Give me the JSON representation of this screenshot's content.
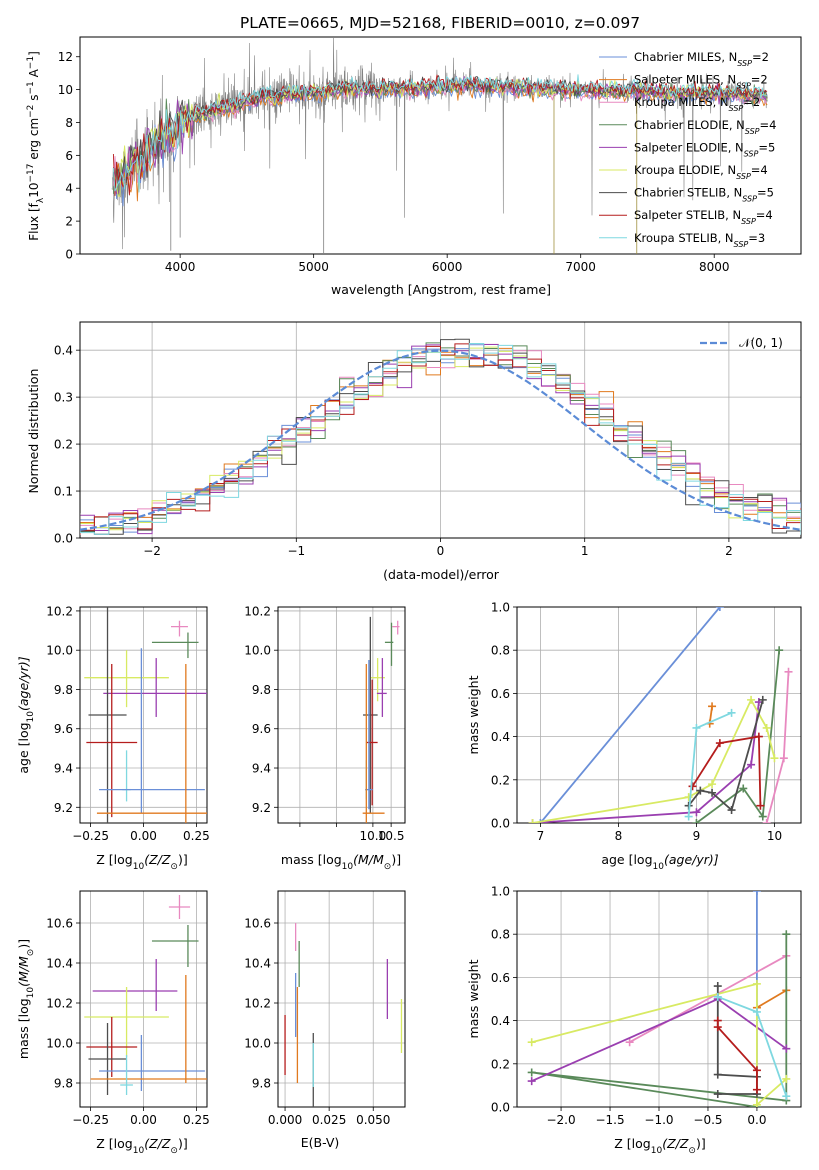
{
  "colors": {
    "Chabrier MILES": "#6a8fd8",
    "Salpeter MILES": "#e07a1f",
    "Kroupa MILES": "#e889c0",
    "Chabrier ELODIE": "#5a8a5a",
    "Salpeter ELODIE": "#9a3fb0",
    "Kroupa ELODIE": "#d8ea63",
    "Chabrier STELIB": "#4d4d4d",
    "Salpeter STELIB": "#b51d1d",
    "Kroupa STELIB": "#7fd8e0",
    "data": "#808080",
    "gaussian": "#5b8bd6"
  },
  "chart_data": [
    {
      "type": "line",
      "title": "PLATE=0665, MJD=52168, FIBERID=0010, z=0.097",
      "xlabel": "wavelength [Angstrom, rest frame]",
      "ylabel": "Flux [f",
      "ylabel_parts": [
        "Flux [f",
        "λ",
        "10",
        "−17",
        " erg cm",
        "−2",
        " s",
        "−1",
        " A",
        "−1",
        "]"
      ],
      "xlim": [
        3250,
        8650
      ],
      "ylim": [
        0,
        13.2
      ],
      "xticks": [
        4000,
        5000,
        6000,
        7000,
        8000
      ],
      "yticks": [
        0,
        2,
        4,
        6,
        8,
        10,
        12
      ],
      "legend_position": "right",
      "legend": [
        {
          "name": "Chabrier MILES",
          "nssp": "2"
        },
        {
          "name": "Salpeter MILES",
          "nssp": "2"
        },
        {
          "name": "Kroupa MILES",
          "nssp": "2"
        },
        {
          "name": "Chabrier ELODIE",
          "nssp": "4"
        },
        {
          "name": "Salpeter ELODIE",
          "nssp": "5"
        },
        {
          "name": "Kroupa ELODIE",
          "nssp": "4"
        },
        {
          "name": "Chabrier STELIB",
          "nssp": "5"
        },
        {
          "name": "Salpeter STELIB",
          "nssp": "4"
        },
        {
          "name": "Kroupa STELIB",
          "nssp": "3"
        }
      ],
      "nssp_label": "N",
      "nssp_sub": "SSP",
      "continuum": {
        "x": [
          3500,
          3550,
          3600,
          3650,
          3700,
          3750,
          3800,
          3850,
          3900,
          3950,
          4000,
          4100,
          4200,
          4300,
          4400,
          4500,
          4600,
          4800,
          5000,
          5200,
          5400,
          5600,
          5800,
          6000,
          6200,
          6400,
          6600,
          6800,
          7000,
          7200,
          7400,
          7600,
          7800,
          8000,
          8200,
          8400
        ],
        "y": [
          4.3,
          4.6,
          5.0,
          5.5,
          5.6,
          6.0,
          6.5,
          7.0,
          7.2,
          7.3,
          8.0,
          8.3,
          8.6,
          8.8,
          9.0,
          9.3,
          9.5,
          9.7,
          9.8,
          10.0,
          10.0,
          10.1,
          10.1,
          10.2,
          10.2,
          10.2,
          10.1,
          10.0,
          10.0,
          9.9,
          9.9,
          9.8,
          9.8,
          9.8,
          9.7,
          9.6
        ]
      }
    },
    {
      "type": "bar",
      "xlabel": "(data-model)/error",
      "ylabel": "Normed distribution",
      "xlim": [
        -2.5,
        2.5
      ],
      "ylim": [
        0,
        0.46
      ],
      "xticks": [
        -2,
        -1,
        0,
        1,
        2
      ],
      "yticks": [
        0.0,
        0.1,
        0.2,
        0.3,
        0.4
      ],
      "legend_position": "top-right",
      "legend": [
        "𝒩(0, 1)"
      ],
      "grid": true,
      "bin_width": 0.1
    },
    {
      "type": "scatter",
      "xlabel_parts": [
        "Z [log",
        "10",
        "(Z/Z",
        "⊙",
        ")]"
      ],
      "ylabel_parts": [
        "age  [log",
        "10",
        "(age/yr)]"
      ],
      "xlim": [
        -0.3,
        0.3
      ],
      "ylim": [
        9.12,
        10.22
      ],
      "xticks": [
        -0.25,
        0.0,
        0.25
      ],
      "xtick_labels": [
        "−0.25",
        "0.00",
        "0.25"
      ],
      "yticks": [
        9.2,
        9.4,
        9.6,
        9.8,
        10.0,
        10.2
      ],
      "grid": true,
      "points": [
        {
          "model": "Kroupa MILES",
          "x": 0.17,
          "xerr": [
            0.04,
            0.04
          ],
          "y": 10.12,
          "yerr": [
            0.05,
            0.03
          ]
        },
        {
          "model": "Chabrier ELODIE",
          "x": 0.21,
          "xerr": [
            0.17,
            0.05
          ],
          "y": 10.04,
          "yerr": [
            0.08,
            0.05
          ]
        },
        {
          "model": "Kroupa ELODIE",
          "x": -0.08,
          "xerr": [
            0.2,
            0.2
          ],
          "y": 9.86,
          "yerr": [
            0.15,
            0.14
          ]
        },
        {
          "model": "Salpeter ELODIE",
          "x": 0.06,
          "xerr": [
            0.25,
            0.25
          ],
          "y": 9.78,
          "yerr": [
            0.12,
            0.18
          ]
        },
        {
          "model": "Chabrier STELIB",
          "x": -0.17,
          "xerr": [
            0.09,
            0.09
          ],
          "y": 9.67,
          "yerr": [
            0.55,
            0.55
          ]
        },
        {
          "model": "Salpeter STELIB",
          "x": -0.15,
          "xerr": [
            0.12,
            0.12
          ],
          "y": 9.53,
          "yerr": [
            0.38,
            0.4
          ]
        },
        {
          "model": "Kroupa STELIB",
          "x": -0.08,
          "xerr": [
            0.02,
            0.02
          ],
          "y": 9.29,
          "yerr": [
            0.06,
            0.2
          ]
        },
        {
          "model": "Chabrier MILES",
          "x": -0.01,
          "xerr": [
            0.2,
            0.3
          ],
          "y": 9.29,
          "yerr": [
            0.12,
            0.72
          ]
        },
        {
          "model": "Salpeter MILES",
          "x": 0.2,
          "xerr": [
            0.42,
            0.12
          ],
          "y": 9.17,
          "yerr": [
            0.2,
            0.76
          ]
        }
      ]
    },
    {
      "type": "scatter",
      "xlabel_parts": [
        "mass [log",
        "10",
        "(M/M",
        "⊙",
        ")]"
      ],
      "xlim": [
        7.4,
        10.88
      ],
      "ylim": [
        9.12,
        10.22
      ],
      "xticks": [
        8.0,
        9.0,
        10.0,
        10.5
      ],
      "xtick_labels": [
        "",
        "",
        "10.0",
        "10.5"
      ],
      "yticks": [
        9.2,
        9.4,
        9.6,
        9.8,
        10.0,
        10.2
      ],
      "grid": true,
      "points": [
        {
          "model": "Kroupa MILES",
          "x": 10.68,
          "xerr": [
            0.15,
            0.05
          ],
          "y": 10.12,
          "yerr": [
            0.04,
            0.03
          ]
        },
        {
          "model": "Chabrier ELODIE",
          "x": 10.51,
          "xerr": [
            0.18,
            0.05
          ],
          "y": 10.04,
          "yerr": [
            0.12,
            0.1
          ]
        },
        {
          "model": "Kroupa ELODIE",
          "x": 10.13,
          "xerr": [
            0.2,
            0.2
          ],
          "y": 9.86,
          "yerr": [
            0.12,
            0.1
          ]
        },
        {
          "model": "Salpeter ELODIE",
          "x": 10.26,
          "xerr": [
            0.15,
            0.12
          ],
          "y": 9.78,
          "yerr": [
            0.12,
            0.18
          ]
        },
        {
          "model": "Chabrier STELIB",
          "x": 9.93,
          "xerr": [
            0.2,
            0.2
          ],
          "y": 9.67,
          "yerr": [
            0.5,
            0.5
          ]
        },
        {
          "model": "Salpeter STELIB",
          "x": 9.98,
          "xerr": [
            0.15,
            0.15
          ],
          "y": 9.53,
          "yerr": [
            0.32,
            0.32
          ]
        },
        {
          "model": "Kroupa STELIB",
          "x": 9.82,
          "xerr": [
            0.03,
            0.03
          ],
          "y": 9.29,
          "yerr": [
            0.05,
            0.15
          ]
        },
        {
          "model": "Chabrier MILES",
          "x": 9.89,
          "xerr": [
            0.1,
            0.1
          ],
          "y": 9.29,
          "yerr": [
            0.1,
            0.66
          ]
        },
        {
          "model": "Salpeter MILES",
          "x": 9.82,
          "xerr": [
            0.1,
            0.5
          ],
          "y": 9.17,
          "yerr": [
            0.2,
            0.76
          ]
        }
      ]
    },
    {
      "type": "line",
      "xlabel_parts": [
        "age  [log",
        "10",
        "(age/yr)]"
      ],
      "ylabel": "mass weight",
      "xlim": [
        6.7,
        10.34
      ],
      "ylim": [
        0,
        1
      ],
      "xticks": [
        7,
        8,
        9,
        10
      ],
      "yticks": [
        0.0,
        0.2,
        0.4,
        0.6,
        0.8,
        1.0
      ],
      "grid": true,
      "series": [
        {
          "model": "Chabrier MILES",
          "x": [
            7.0,
            9.3
          ],
          "y": [
            0.0,
            1.0
          ]
        },
        {
          "model": "Salpeter MILES",
          "x": [
            9.17,
            9.2
          ],
          "y": [
            0.46,
            0.54
          ]
        },
        {
          "model": "Kroupa MILES",
          "x": [
            9.9,
            10.12,
            10.18
          ],
          "y": [
            0.0,
            0.3,
            0.7
          ]
        },
        {
          "model": "Chabrier ELODIE",
          "x": [
            9.0,
            9.6,
            9.85,
            10.06
          ],
          "y": [
            0.0,
            0.16,
            0.03,
            0.8
          ]
        },
        {
          "model": "Salpeter ELODIE",
          "x": [
            6.9,
            9.0,
            9.7,
            9.8
          ],
          "y": [
            0.0,
            0.05,
            0.27,
            0.56
          ]
        },
        {
          "model": "Kroupa ELODIE",
          "x": [
            6.9,
            8.9,
            9.2,
            9.7,
            9.9,
            10.0
          ],
          "y": [
            0.0,
            0.12,
            0.18,
            0.57,
            0.44,
            0.3
          ]
        },
        {
          "model": "Chabrier STELIB",
          "x": [
            8.9,
            9.05,
            9.2,
            9.45,
            9.85
          ],
          "y": [
            0.08,
            0.15,
            0.14,
            0.06,
            0.57
          ]
        },
        {
          "model": "Salpeter STELIB",
          "x": [
            8.95,
            9.3,
            9.8,
            9.82
          ],
          "y": [
            0.17,
            0.37,
            0.4,
            0.08
          ]
        },
        {
          "model": "Kroupa STELIB",
          "x": [
            8.9,
            9.0,
            9.45
          ],
          "y": [
            0.03,
            0.44,
            0.51
          ]
        }
      ]
    },
    {
      "type": "scatter",
      "xlabel_parts": [
        "Z [log",
        "10",
        "(Z/Z",
        "⊙",
        ")]"
      ],
      "ylabel_parts": [
        "mass [log",
        "10",
        "(M/M",
        "⊙",
        ")]"
      ],
      "xlim": [
        -0.3,
        0.3
      ],
      "ylim": [
        9.68,
        10.76
      ],
      "xticks": [
        -0.25,
        0.0,
        0.25
      ],
      "xtick_labels": [
        "−0.25",
        "0.00",
        "0.25"
      ],
      "yticks": [
        9.8,
        10.0,
        10.2,
        10.4,
        10.6
      ],
      "grid": true,
      "points": [
        {
          "model": "Kroupa MILES",
          "x": 0.17,
          "xerr": [
            0.05,
            0.05
          ],
          "y": 10.68,
          "yerr": [
            0.06,
            0.06
          ]
        },
        {
          "model": "Chabrier ELODIE",
          "x": 0.21,
          "xerr": [
            0.17,
            0.05
          ],
          "y": 10.51,
          "yerr": [
            0.13,
            0.08
          ]
        },
        {
          "model": "Salpeter ELODIE",
          "x": 0.06,
          "xerr": [
            0.3,
            0.1
          ],
          "y": 10.26,
          "yerr": [
            0.1,
            0.16
          ]
        },
        {
          "model": "Kroupa ELODIE",
          "x": -0.08,
          "xerr": [
            0.2,
            0.2
          ],
          "y": 10.13,
          "yerr": [
            0.2,
            0.15
          ]
        },
        {
          "model": "Salpeter STELIB",
          "x": -0.15,
          "xerr": [
            0.12,
            0.12
          ],
          "y": 9.98,
          "yerr": [
            0.15,
            0.15
          ]
        },
        {
          "model": "Chabrier STELIB",
          "x": -0.17,
          "xerr": [
            0.09,
            0.09
          ],
          "y": 9.92,
          "yerr": [
            0.18,
            0.18
          ]
        },
        {
          "model": "Chabrier MILES",
          "x": -0.01,
          "xerr": [
            0.2,
            0.3
          ],
          "y": 9.86,
          "yerr": [
            0.1,
            0.18
          ]
        },
        {
          "model": "Salpeter MILES",
          "x": 0.2,
          "xerr": [
            0.45,
            0.1
          ],
          "y": 9.82,
          "yerr": [
            0.02,
            0.52
          ]
        },
        {
          "model": "Kroupa STELIB",
          "x": -0.08,
          "xerr": [
            0.03,
            0.03
          ],
          "y": 9.79,
          "yerr": [
            0.05,
            0.15
          ]
        }
      ]
    },
    {
      "type": "scatter",
      "xlabel": "E(B-V)",
      "xlim": [
        -0.004,
        0.068
      ],
      "ylim": [
        9.68,
        10.76
      ],
      "xticks": [
        0.0,
        0.025,
        0.05
      ],
      "xtick_labels": [
        "0.000",
        "0.025",
        "0.050"
      ],
      "yticks": [
        9.8,
        10.0,
        10.2,
        10.4,
        10.6
      ],
      "grid": true,
      "points": [
        {
          "model": "Kroupa MILES",
          "x": 0.006,
          "yerr": [
            0.12,
            0.02
          ],
          "y": 10.58
        },
        {
          "model": "Chabrier ELODIE",
          "x": 0.008,
          "yerr": [
            0.1,
            0.13
          ],
          "y": 10.38
        },
        {
          "model": "Salpeter ELODIE",
          "x": 0.058,
          "yerr": [
            0.15,
            0.15
          ],
          "y": 10.27
        },
        {
          "model": "Kroupa ELODIE",
          "x": 0.066,
          "yerr": [
            0.17,
            0.1
          ],
          "y": 10.12
        },
        {
          "model": "Salpeter STELIB",
          "x": 0.0,
          "yerr": [
            0.15,
            0.15
          ],
          "y": 9.99
        },
        {
          "model": "Salpeter MILES",
          "x": 0.007,
          "yerr": [
            0.13,
            0.35
          ],
          "y": 9.93
        },
        {
          "model": "Chabrier STELIB",
          "x": 0.016,
          "yerr": [
            0.31,
            0.1
          ],
          "y": 9.95
        },
        {
          "model": "Kroupa STELIB",
          "x": 0.016,
          "yerr": [
            0.12,
            0.1
          ],
          "y": 9.9
        },
        {
          "model": "Chabrier MILES",
          "x": 0.006,
          "yerr": [
            0.12,
            0.2
          ],
          "y": 10.15
        }
      ]
    },
    {
      "type": "line",
      "xlabel_parts": [
        "Z [log",
        "10",
        "(Z/Z",
        "⊙",
        ")]"
      ],
      "ylabel": "mass weight",
      "xlim": [
        -2.45,
        0.45
      ],
      "ylim": [
        0,
        1
      ],
      "xticks": [
        -2.0,
        -1.5,
        -1.0,
        -0.5,
        0.0
      ],
      "xtick_labels": [
        "−2.0",
        "−1.5",
        "−1.0",
        "−0.5",
        "0.0"
      ],
      "yticks": [
        0.0,
        0.2,
        0.4,
        0.6,
        0.8,
        1.0
      ],
      "grid": true,
      "series": [
        {
          "model": "Chabrier MILES",
          "x": [
            0.0,
            0.0
          ],
          "y": [
            0.0,
            1.0
          ]
        },
        {
          "model": "Salpeter MILES",
          "x": [
            0.0,
            0.3
          ],
          "y": [
            0.46,
            0.54
          ]
        },
        {
          "model": "Kroupa MILES",
          "x": [
            -1.3,
            0.3
          ],
          "y": [
            0.3,
            0.7
          ]
        },
        {
          "model": "Chabrier ELODIE",
          "x": [
            0.3,
            0.3,
            -2.3,
            0.0
          ],
          "y": [
            0.8,
            0.03,
            0.16,
            0.0
          ]
        },
        {
          "model": "Salpeter ELODIE",
          "x": [
            -2.3,
            -0.4,
            0.3
          ],
          "y": [
            0.12,
            0.5,
            0.27
          ]
        },
        {
          "model": "Kroupa ELODIE",
          "x": [
            -2.3,
            0.0,
            0.0,
            0.3
          ],
          "y": [
            0.3,
            0.57,
            0.01,
            0.13
          ]
        },
        {
          "model": "Chabrier STELIB",
          "x": [
            -0.4,
            -0.4,
            0.0,
            0.0,
            -0.4
          ],
          "y": [
            0.56,
            0.15,
            0.14,
            0.06,
            0.06
          ]
        },
        {
          "model": "Salpeter STELIB",
          "x": [
            -0.4,
            -0.4,
            0.0,
            0.0
          ],
          "y": [
            0.4,
            0.37,
            0.17,
            0.08
          ]
        },
        {
          "model": "Kroupa STELIB",
          "x": [
            -0.4,
            0.0,
            0.3
          ],
          "y": [
            0.51,
            0.44,
            0.05
          ]
        }
      ]
    }
  ]
}
